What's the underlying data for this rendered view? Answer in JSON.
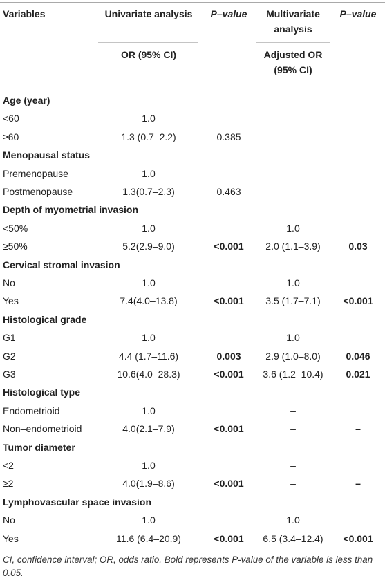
{
  "header": {
    "variables": "Variables",
    "univariate": "Univariate analysis",
    "p_value_1": "P–value",
    "multivariate_line1": "Multivariate",
    "multivariate_line2": "analysis",
    "p_value_2": "P–value",
    "or_ci": "OR (95% CI)",
    "adjusted_line1": "Adjusted OR",
    "adjusted_line2": "(95% CI)"
  },
  "rows": [
    {
      "label": "Age (year)",
      "section": true
    },
    {
      "label": "<60",
      "or": "1.0"
    },
    {
      "label": "≥60",
      "or": "1.3 (0.7–2.2)",
      "p1": "0.385"
    },
    {
      "label": "Menopausal status",
      "section": true
    },
    {
      "label": "Premenopause",
      "or": "1.0"
    },
    {
      "label": "Postmenopause",
      "or": "1.3(0.7–2.3)",
      "p1": "0.463"
    },
    {
      "label": "Depth of myometrial invasion",
      "section": true
    },
    {
      "label": "<50%",
      "or": "1.0",
      "aor": "1.0"
    },
    {
      "label": "≥50%",
      "or": "5.2(2.9–9.0)",
      "p1": "<0.001",
      "p1_bold": true,
      "aor": "2.0 (1.1–3.9)",
      "p2": "0.03",
      "p2_bold": true
    },
    {
      "label": "Cervical stromal invasion",
      "section": true
    },
    {
      "label": "No",
      "or": "1.0",
      "aor": "1.0"
    },
    {
      "label": "Yes",
      "or": "7.4(4.0–13.8)",
      "p1": "<0.001",
      "p1_bold": true,
      "aor": "3.5 (1.7–7.1)",
      "p2": "<0.001",
      "p2_bold": true
    },
    {
      "label": "Histological grade",
      "section": true
    },
    {
      "label": "G1",
      "or": "1.0",
      "aor": "1.0"
    },
    {
      "label": "G2",
      "or": "4.4 (1.7–11.6)",
      "p1": "0.003",
      "p1_bold": true,
      "aor": "2.9 (1.0–8.0)",
      "p2": "0.046",
      "p2_bold": true
    },
    {
      "label": "G3",
      "or": "10.6(4.0–28.3)",
      "p1": "<0.001",
      "p1_bold": true,
      "aor": "3.6 (1.2–10.4)",
      "p2": "0.021",
      "p2_bold": true
    },
    {
      "label": "Histological type",
      "section": true
    },
    {
      "label": "Endometrioid",
      "or": "1.0",
      "aor": "–"
    },
    {
      "label": "Non–endometrioid",
      "or": "4.0(2.1–7.9)",
      "p1": "<0.001",
      "p1_bold": true,
      "aor": "–",
      "p2": "–",
      "p2_bold": true
    },
    {
      "label": "Tumor diameter",
      "section": true
    },
    {
      "label": "<2",
      "or": "1.0",
      "aor": "–"
    },
    {
      "label": "≥2",
      "or": "4.0(1.9–8.6)",
      "p1": "<0.001",
      "p1_bold": true,
      "aor": "–",
      "p2": "–",
      "p2_bold": true
    },
    {
      "label": "Lymphovascular space invasion",
      "section": true
    },
    {
      "label": "No",
      "or": "1.0",
      "aor": "1.0"
    },
    {
      "label": "Yes",
      "or": "11.6 (6.4–20.9)",
      "p1": "<0.001",
      "p1_bold": true,
      "aor": "6.5 (3.4–12.4)",
      "p2": "<0.001",
      "p2_bold": true
    }
  ],
  "footnote": "CI, confidence interval; OR, odds ratio. Bold represents P-value of the variable is less than 0.05."
}
